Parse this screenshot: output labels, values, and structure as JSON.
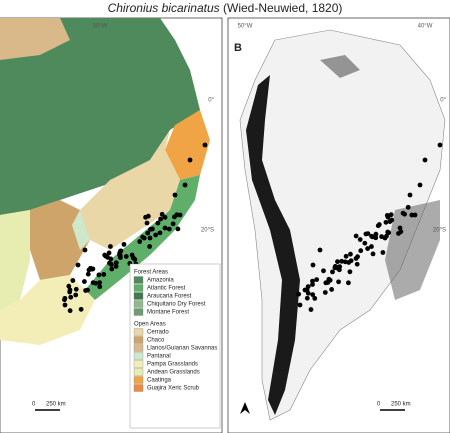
{
  "title": {
    "species": "Chironius bicarinatus",
    "authority": "(Wied-Neuwied, 1820)"
  },
  "map_a": {
    "graticule": [
      "50°W",
      "0°",
      "20°S"
    ],
    "scale": [
      "0",
      "250 km"
    ]
  },
  "map_b": {
    "label": "B",
    "graticule": [
      "50°W",
      "40°W",
      "0°",
      "20°S"
    ],
    "scale": [
      "0",
      "250 km"
    ]
  },
  "legend": {
    "groups": [
      {
        "title": "Forest Areas",
        "items": [
          {
            "label": "Amazonia",
            "color": "#4f8a5c"
          },
          {
            "label": "Atlantic Forest",
            "color": "#5fae6a"
          },
          {
            "label": "Araucaria Forest",
            "color": "#3f7a4e"
          },
          {
            "label": "Chiquitano Dry Forest",
            "color": "#8fb98a"
          },
          {
            "label": "Montane Forest",
            "color": "#6e9c74"
          }
        ]
      },
      {
        "title": "Open Areas",
        "items": [
          {
            "label": "Cerrado",
            "color": "#e9d7a8"
          },
          {
            "label": "Chaco",
            "color": "#cfa46a"
          },
          {
            "label": "Llanos/Guianan Savannas",
            "color": "#d9b98a"
          },
          {
            "label": "Pantanal",
            "color": "#cfe8c9"
          },
          {
            "label": "Pampa Grasslands",
            "color": "#f3eeb8"
          },
          {
            "label": "Andean Grasslands",
            "color": "#e7ecb0"
          },
          {
            "label": "Caatinga",
            "color": "#f0a445"
          },
          {
            "label": "Guajira Xeric Scrub",
            "color": "#f08a3c"
          }
        ]
      }
    ]
  }
}
